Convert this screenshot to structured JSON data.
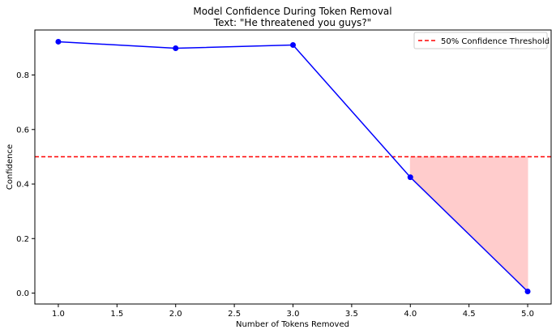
{
  "chart_data": {
    "type": "line",
    "title": "Model Confidence During Token Removal",
    "subtitle": "Text: \"He threatened you guys?\"",
    "xlabel": "Number of Tokens Removed",
    "ylabel": "Confidence",
    "xlim": [
      0.8,
      5.2
    ],
    "ylim": [
      -0.04,
      0.965
    ],
    "x_ticks": [
      1.0,
      1.5,
      2.0,
      2.5,
      3.0,
      3.5,
      4.0,
      4.5,
      5.0
    ],
    "x_tick_labels": [
      "1.0",
      "1.5",
      "2.0",
      "2.5",
      "3.0",
      "3.5",
      "4.0",
      "4.5",
      "5.0"
    ],
    "y_ticks": [
      0.0,
      0.2,
      0.4,
      0.6,
      0.8
    ],
    "y_tick_labels": [
      "0.0",
      "0.2",
      "0.4",
      "0.6",
      "0.8"
    ],
    "grid": false,
    "series": [
      {
        "x": [
          1,
          2,
          3,
          4,
          5
        ],
        "y": [
          0.922,
          0.898,
          0.91,
          0.425,
          0.006
        ],
        "color": "#0000ff",
        "marker": "circle"
      }
    ],
    "threshold": {
      "value": 0.5,
      "label": "50% Confidence Threshold",
      "color": "#ff0000",
      "style": "dashed"
    },
    "fill_below_threshold": {
      "x": [
        4,
        5
      ],
      "color": "#ffcccc"
    },
    "legend_position": "top-right"
  }
}
